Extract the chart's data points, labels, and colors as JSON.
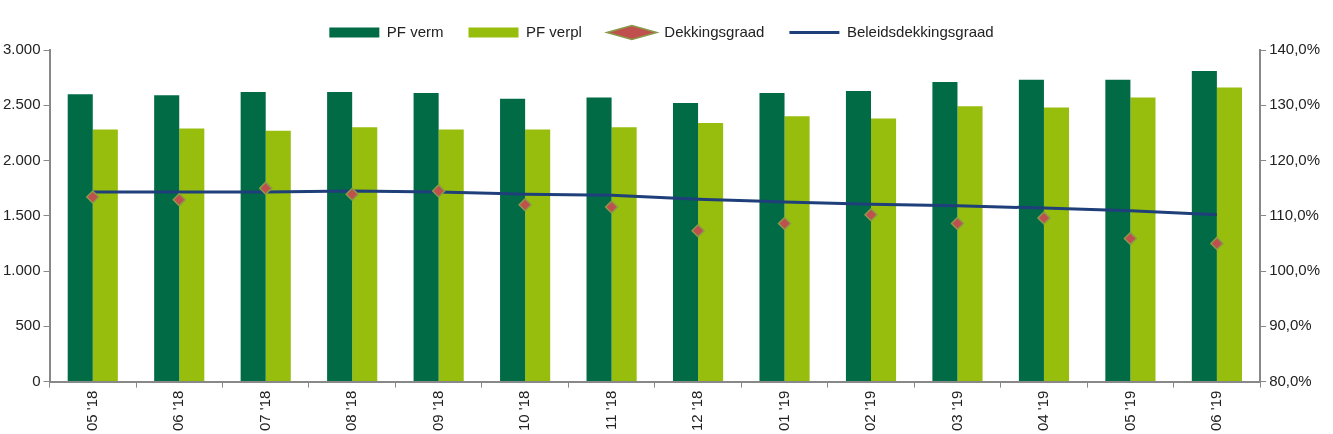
{
  "chart_data": {
    "type": "bar",
    "categories": [
      "05 '18",
      "06 '18",
      "07 '18",
      "08 '18",
      "09 '18",
      "10 '18",
      "11 '18",
      "12 '18",
      "01 '19",
      "02 '19",
      "03 '19",
      "04 '19",
      "05 '19",
      "06 '19"
    ],
    "series": [
      {
        "name": "PF verm",
        "color": "#006b45",
        "values": [
          2600,
          2590,
          2620,
          2620,
          2610,
          2560,
          2570,
          2520,
          2610,
          2630,
          2710,
          2730,
          2730,
          2810
        ]
      },
      {
        "name": "PF verpl",
        "color": "#97be0d",
        "values": [
          2280,
          2290,
          2270,
          2300,
          2280,
          2280,
          2300,
          2340,
          2400,
          2380,
          2490,
          2480,
          2570,
          2660
        ]
      },
      {
        "name": "Dekkingsgraad",
        "type": "scatter",
        "axis": "y2",
        "marker": "diamond",
        "color": "#c0504d",
        "values": [
          113.4,
          112.9,
          115.0,
          113.9,
          114.5,
          112.0,
          111.6,
          107.3,
          108.6,
          110.2,
          108.6,
          109.6,
          105.9,
          105.0
        ]
      },
      {
        "name": "Beleidsdekkingsgraad",
        "type": "line",
        "axis": "y2",
        "marker": "none",
        "color": "#1f3f7a",
        "values": [
          114.3,
          114.3,
          114.3,
          114.5,
          114.3,
          113.9,
          113.7,
          113.0,
          112.5,
          112.1,
          111.8,
          111.4,
          110.9,
          110.2
        ]
      }
    ],
    "ylim": [
      0,
      3000
    ],
    "yticks": [
      0,
      {
        "value": 500,
        "label": "500"
      },
      {
        "value": 1000,
        "label": "1.000"
      },
      {
        "value": 1500,
        "label": "1.500"
      },
      {
        "value": 2000,
        "label": "2.000"
      },
      {
        "value": 2500,
        "label": "2.500"
      },
      {
        "value": 3000,
        "label": "3.000"
      }
    ],
    "y2lim": [
      80,
      140
    ],
    "y2ticks": [
      {
        "value": 80,
        "label": "80,0%"
      },
      {
        "value": 90,
        "label": "90,0%"
      },
      {
        "value": 100,
        "label": "100,0%"
      },
      {
        "value": 110,
        "label": "110,0%"
      },
      {
        "value": 120,
        "label": "120,0%"
      },
      {
        "value": 130,
        "label": "130,0%"
      },
      {
        "value": 140,
        "label": "140,0%"
      }
    ],
    "grid": false,
    "legend": "top"
  }
}
